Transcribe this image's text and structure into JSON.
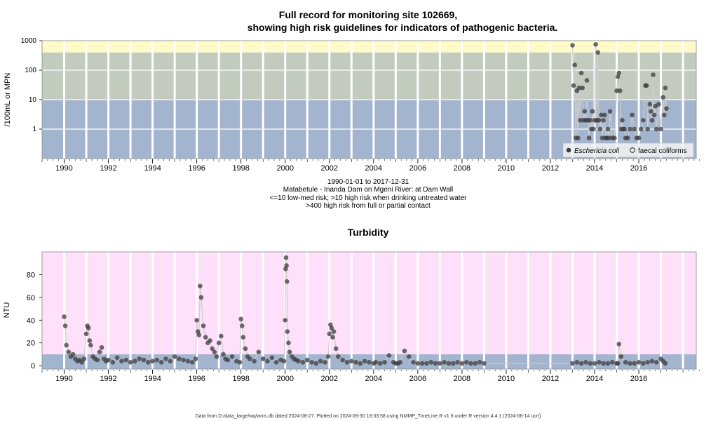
{
  "colors": {
    "band_low": "#a3b4ce",
    "band_mid": "#c3cbbf",
    "band_high": "#fdfbc9",
    "turb_high": "#ffe0fb",
    "turb_low": "#a3b4ce",
    "point": "#3c3c3c",
    "line": "#cccccc"
  },
  "chart_data": [
    {
      "type": "scatter",
      "title_line1": "Full record for monitoring site 102669,",
      "title_line2": "showing high risk guidelines for indicators of pathogenic bacteria.",
      "ylabel": "/100mL or MPN",
      "y_scale": "log",
      "ylim": [
        0.1,
        1000
      ],
      "y_ticks": [
        "1000",
        "100",
        "10",
        "1"
      ],
      "xlim": [
        1989.0,
        2018.6
      ],
      "x_tick_labels": [
        "1990",
        "1992",
        "1994",
        "1996",
        "1998",
        "2000",
        "2002",
        "2004",
        "2006",
        "2008",
        "2010",
        "2012",
        "2014",
        "2016"
      ],
      "guidelines": [
        10,
        400
      ],
      "legend": {
        "position": "bottom-right",
        "items": [
          "Eschericia coli",
          "faecal coliforms"
        ]
      },
      "series": [
        {
          "name": "Eschericia coli",
          "x": [
            2013.0,
            2013.05,
            2013.1,
            2013.15,
            2013.2,
            2013.25,
            2013.3,
            2013.35,
            2013.4,
            2013.45,
            2013.5,
            2013.55,
            2013.6,
            2013.65,
            2013.7,
            2013.75,
            2013.8,
            2013.85,
            2013.9,
            2013.95,
            2014.0,
            2014.05,
            2014.1,
            2014.15,
            2014.2,
            2014.25,
            2014.3,
            2014.35,
            2014.4,
            2014.45,
            2014.5,
            2014.55,
            2014.6,
            2014.65,
            2014.7,
            2014.8,
            2014.9,
            2015.0,
            2015.05,
            2015.1,
            2015.15,
            2015.2,
            2015.25,
            2015.3,
            2015.35,
            2015.4,
            2015.5,
            2015.6,
            2015.7,
            2015.8,
            2015.9,
            2016.0,
            2016.1,
            2016.2,
            2016.3,
            2016.35,
            2016.4,
            2016.5,
            2016.55,
            2016.6,
            2016.65,
            2016.7,
            2016.75,
            2016.8,
            2016.9,
            2017.0,
            2017.1,
            2017.15,
            2017.2,
            2017.25
          ],
          "values": [
            700,
            30,
            150,
            0.5,
            20,
            0.5,
            25,
            2,
            80,
            25,
            2,
            4,
            2,
            45,
            2,
            0.5,
            2,
            1,
            4,
            1,
            2,
            750,
            2,
            400,
            2,
            1,
            3,
            0.5,
            2,
            3,
            0.5,
            0.5,
            1,
            0.5,
            4,
            0.5,
            0.5,
            20,
            60,
            80,
            20,
            1,
            2,
            1,
            1,
            0.5,
            0.5,
            1,
            3,
            1,
            0.5,
            0.5,
            1,
            2,
            30,
            30,
            1,
            7,
            4,
            2,
            70,
            3,
            6,
            1,
            7,
            1,
            12,
            3,
            25,
            5
          ]
        },
        {
          "name": "faecal coliforms",
          "x": [],
          "values": []
        }
      ]
    },
    {
      "type": "scatter",
      "title": "Turbidity",
      "ylabel": "NTU",
      "ylim": [
        -3,
        100
      ],
      "y_ticks": [
        "80",
        "60",
        "40",
        "20",
        "0"
      ],
      "xlim": [
        1989.0,
        2018.6
      ],
      "x_tick_labels": [
        "1990",
        "1992",
        "1994",
        "1996",
        "1998",
        "2000",
        "2002",
        "2004",
        "2006",
        "2008",
        "2010",
        "2012",
        "2014",
        "2016"
      ],
      "guideline": 10,
      "series": [
        {
          "name": "Turbidity",
          "x": [
            1990.0,
            1990.05,
            1990.1,
            1990.2,
            1990.3,
            1990.4,
            1990.5,
            1990.6,
            1990.7,
            1990.8,
            1990.9,
            1991.0,
            1991.05,
            1991.1,
            1991.15,
            1991.2,
            1991.3,
            1991.4,
            1991.5,
            1991.6,
            1991.7,
            1991.8,
            1991.9,
            1992.0,
            1992.2,
            1992.4,
            1992.6,
            1992.8,
            1993.0,
            1993.2,
            1993.4,
            1993.6,
            1993.8,
            1994.0,
            1994.2,
            1994.4,
            1994.6,
            1994.8,
            1995.0,
            1995.2,
            1995.4,
            1995.6,
            1995.8,
            1995.95,
            1996.0,
            1996.05,
            1996.1,
            1996.15,
            1996.2,
            1996.3,
            1996.4,
            1996.5,
            1996.6,
            1996.7,
            1996.8,
            1996.9,
            1997.0,
            1997.1,
            1997.2,
            1997.3,
            1997.4,
            1997.6,
            1997.8,
            1997.95,
            1998.0,
            1998.05,
            1998.1,
            1998.2,
            1998.3,
            1998.4,
            1998.6,
            1998.8,
            1999.0,
            1999.2,
            1999.4,
            1999.6,
            1999.8,
            1999.95,
            2000.0,
            2000.02,
            2000.04,
            2000.06,
            2000.08,
            2000.1,
            2000.15,
            2000.2,
            2000.3,
            2000.4,
            2000.5,
            2000.6,
            2000.8,
            2001.0,
            2001.2,
            2001.4,
            2001.6,
            2001.8,
            2001.95,
            2002.0,
            2002.05,
            2002.1,
            2002.15,
            2002.2,
            2002.3,
            2002.4,
            2002.6,
            2002.8,
            2003.0,
            2003.2,
            2003.4,
            2003.6,
            2003.8,
            2004.0,
            2004.1,
            2004.3,
            2004.5,
            2004.7,
            2004.9,
            2005.0,
            2005.1,
            2005.2,
            2005.4,
            2005.6,
            2005.8,
            2006.0,
            2006.2,
            2006.4,
            2006.6,
            2006.8,
            2007.0,
            2007.2,
            2007.4,
            2007.6,
            2007.8,
            2008.0,
            2008.2,
            2008.4,
            2008.6,
            2008.8,
            2009.0,
            2013.0,
            2013.2,
            2013.4,
            2013.6,
            2013.8,
            2014.0,
            2014.2,
            2014.4,
            2014.6,
            2014.8,
            2015.0,
            2015.05,
            2015.1,
            2015.2,
            2015.4,
            2015.6,
            2015.8,
            2016.0,
            2016.2,
            2016.4,
            2016.6,
            2016.8,
            2017.0,
            2017.1,
            2017.2
          ],
          "values": [
            43,
            35,
            18,
            12,
            8,
            10,
            6,
            4,
            5,
            3,
            6,
            28,
            35,
            33,
            22,
            18,
            8,
            6,
            5,
            12,
            16,
            6,
            4,
            5,
            3,
            7,
            4,
            5,
            3,
            4,
            6,
            5,
            3,
            4,
            5,
            3,
            6,
            4,
            8,
            6,
            5,
            4,
            3,
            6,
            40,
            30,
            27,
            70,
            60,
            35,
            25,
            20,
            22,
            15,
            12,
            8,
            20,
            26,
            10,
            6,
            5,
            8,
            4,
            3,
            41,
            35,
            25,
            15,
            8,
            6,
            4,
            12,
            6,
            4,
            7,
            3,
            5,
            4,
            40,
            85,
            95,
            88,
            74,
            30,
            20,
            12,
            8,
            6,
            5,
            4,
            3,
            5,
            3,
            2,
            4,
            3,
            8,
            28,
            36,
            33,
            25,
            30,
            15,
            8,
            5,
            3,
            4,
            3,
            2,
            4,
            3,
            2,
            3,
            2,
            3,
            9,
            3,
            2,
            2,
            3,
            13,
            8,
            3,
            2,
            2,
            2,
            3,
            2,
            2,
            3,
            2,
            2,
            3,
            2,
            3,
            2,
            2,
            3,
            2,
            2,
            3,
            2,
            3,
            2,
            2,
            3,
            2,
            2,
            3,
            2,
            2,
            19,
            8,
            3,
            2,
            2,
            3,
            2,
            3,
            4,
            3,
            6,
            4,
            2
          ]
        }
      ]
    }
  ],
  "subtitle": {
    "line1": "1990-01-01 to 2017-12-31",
    "line2": "Matabetule - Inanda Dam on Mgeni River: at Dam Wall",
    "line3": "<=10 low-med risk; >10 high risk when drinking untreated water",
    "line4": ">400 high risk from full or partial contact"
  },
  "footer": "Data from D:/data_large/wq/wms.db dated 2024-08-27. Plotted on 2024-09-30 18:33:58 using NMMP_TimeLine.R v1.6 under R version 4.4.1 (2024-06-14 ucrt)"
}
